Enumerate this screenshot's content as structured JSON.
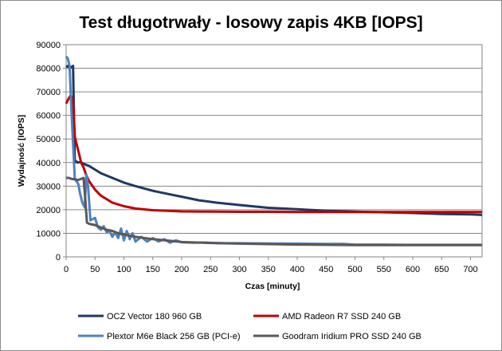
{
  "chart_data": {
    "type": "line",
    "title": "Test długotrwały - losowy zapis 4KB [IOPS]",
    "xlabel": "Czas [minuty]",
    "ylabel": "Wydajność [IOPS]",
    "xlim": [
      0,
      720
    ],
    "ylim": [
      0,
      90000
    ],
    "xticks": [
      0,
      50,
      100,
      150,
      200,
      250,
      300,
      350,
      400,
      450,
      500,
      550,
      600,
      650,
      700
    ],
    "yticks": [
      0,
      10000,
      20000,
      30000,
      40000,
      50000,
      60000,
      70000,
      80000,
      90000
    ],
    "grid": "horizontal",
    "legend_position": "bottom",
    "series": [
      {
        "name": "OCZ Vector 180 960 GB",
        "color": "#1f3864",
        "x": [
          0,
          3,
          6,
          9,
          12,
          15,
          18,
          20,
          25,
          30,
          40,
          50,
          60,
          80,
          100,
          120,
          150,
          180,
          200,
          230,
          260,
          300,
          350,
          400,
          450,
          500,
          550,
          600,
          650,
          700,
          720
        ],
        "y": [
          80500,
          81000,
          80000,
          80500,
          81000,
          40000,
          40500,
          40000,
          40200,
          39500,
          38500,
          37000,
          35500,
          33500,
          31500,
          30000,
          28000,
          26500,
          25500,
          24000,
          23000,
          22000,
          20800,
          20200,
          19600,
          19200,
          18900,
          18600,
          18200,
          18000,
          17800
        ]
      },
      {
        "name": "AMD Radeon  R7 SSD 240 GB",
        "color": "#c00000",
        "x": [
          0,
          4,
          8,
          12,
          15,
          18,
          22,
          26,
          30,
          35,
          40,
          50,
          60,
          80,
          100,
          120,
          150,
          180,
          200,
          250,
          300,
          350,
          400,
          450,
          500,
          550,
          600,
          650,
          700,
          720
        ],
        "y": [
          65000,
          67000,
          68500,
          66000,
          51000,
          48000,
          44000,
          40000,
          38000,
          34500,
          32000,
          28500,
          26000,
          23000,
          21500,
          20500,
          19800,
          19500,
          19300,
          19200,
          19100,
          19100,
          19000,
          19000,
          19000,
          19000,
          19000,
          19000,
          19000,
          19000
        ]
      },
      {
        "name": "Plextor M6e Black 256 GB (PCI-e)",
        "color": "#4f81bd",
        "x": [
          0,
          3,
          6,
          9,
          12,
          15,
          18,
          21,
          24,
          28,
          32,
          35,
          38,
          42,
          46,
          50,
          55,
          60,
          65,
          70,
          75,
          80,
          85,
          90,
          95,
          100,
          105,
          110,
          115,
          120,
          130,
          140,
          150,
          160,
          170,
          180,
          190,
          200,
          220,
          240,
          260,
          280,
          300,
          350,
          400,
          450,
          480,
          500,
          550,
          600,
          650,
          700,
          720
        ],
        "y": [
          85000,
          84000,
          81000,
          63000,
          48000,
          33000,
          32000,
          31000,
          27000,
          23000,
          21000,
          35000,
          30000,
          15500,
          16000,
          16500,
          12500,
          11500,
          13000,
          10500,
          11000,
          8500,
          10500,
          8000,
          12000,
          7000,
          11000,
          7500,
          10000,
          6500,
          8500,
          6500,
          8000,
          6500,
          7500,
          6000,
          7000,
          6200,
          6000,
          6100,
          5900,
          5800,
          5800,
          5700,
          5600,
          5500,
          5500,
          5200,
          5200,
          5100,
          5100,
          5100,
          5100
        ]
      },
      {
        "name": "Goodram Iridium PRO SSD 240 GB",
        "color": "#595959",
        "x": [
          0,
          5,
          10,
          15,
          20,
          25,
          30,
          33,
          36,
          40,
          50,
          60,
          70,
          80,
          90,
          100,
          120,
          150,
          180,
          200,
          250,
          300,
          350,
          400,
          450,
          500,
          550,
          600,
          650,
          700,
          720
        ],
        "y": [
          33500,
          33500,
          33000,
          33000,
          32500,
          33000,
          33500,
          25000,
          14500,
          14000,
          13500,
          12500,
          11500,
          11000,
          10000,
          9500,
          8500,
          7500,
          6800,
          6300,
          5900,
          5600,
          5400,
          5200,
          5100,
          5000,
          5000,
          5000,
          5000,
          5000,
          5000
        ]
      }
    ]
  }
}
